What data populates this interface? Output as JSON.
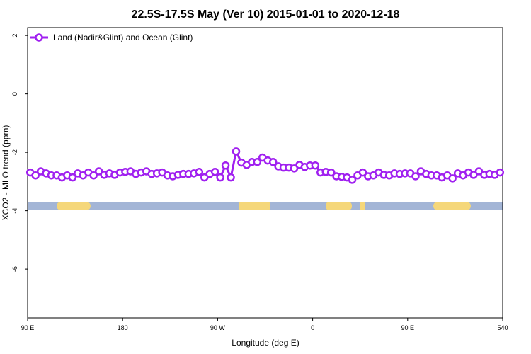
{
  "chart_data": {
    "type": "line",
    "title": "22.5S-17.5S May (Ver 10)   2015-01-01 to 2020-12-18",
    "x_label": "Longitude (deg E)",
    "y_label": "XCO2 - MLO trend (ppm)",
    "xlim": [
      90,
      540
    ],
    "ylim": [
      -7.67,
      2.27
    ],
    "xticks": [
      {
        "value": 90,
        "label": "90 E"
      },
      180,
      {
        "value": 270,
        "label": "90 W"
      },
      {
        "value": 360,
        "label": "0"
      },
      {
        "value": 450,
        "label": "90 E"
      },
      540
    ],
    "yticks": [
      2,
      0,
      -2,
      -4,
      -6
    ],
    "legend": "top-left",
    "x": [
      92.5,
      97.5,
      102.5,
      107.5,
      112.5,
      117.5,
      122.5,
      127.5,
      132.5,
      137.5,
      142.5,
      147.5,
      152.5,
      157.5,
      162.5,
      167.5,
      172.5,
      177.5,
      182.5,
      187.5,
      192.5,
      197.5,
      202.5,
      207.5,
      212.5,
      217.5,
      222.5,
      227.5,
      232.5,
      237.5,
      242.5,
      247.5,
      252.5,
      257.5,
      262.5,
      267.5,
      272.5,
      277.5,
      282.5,
      287.5,
      292.5,
      297.5,
      302.5,
      307.5,
      312.5,
      317.5,
      322.5,
      327.5,
      332.5,
      337.5,
      342.5,
      347.5,
      352.5,
      357.5,
      362.5,
      367.5,
      372.5,
      377.5,
      382.5,
      387.5,
      392.5,
      397.5,
      402.5,
      407.5,
      412.5,
      417.5,
      422.5,
      427.5,
      432.5,
      437.5,
      442.5,
      447.5,
      452.5,
      457.5,
      462.5,
      467.5,
      472.5,
      477.5,
      482.5,
      487.5,
      492.5,
      497.5,
      502.5,
      507.5,
      512.5,
      517.5,
      522.5,
      527.5,
      532.5,
      537.5
    ],
    "series": [
      {
        "name": "Land (Nadir&Glint) and Ocean (Glint)",
        "color": "#a020f0",
        "values": [
          -2.69,
          -2.79,
          -2.65,
          -2.72,
          -2.79,
          -2.79,
          -2.86,
          -2.79,
          -2.86,
          -2.72,
          -2.79,
          -2.69,
          -2.79,
          -2.65,
          -2.77,
          -2.72,
          -2.77,
          -2.69,
          -2.67,
          -2.65,
          -2.74,
          -2.69,
          -2.65,
          -2.74,
          -2.72,
          -2.69,
          -2.79,
          -2.82,
          -2.77,
          -2.74,
          -2.74,
          -2.72,
          -2.67,
          -2.86,
          -2.74,
          -2.67,
          -2.86,
          -2.45,
          -2.86,
          -1.97,
          -2.35,
          -2.43,
          -2.33,
          -2.33,
          -2.18,
          -2.28,
          -2.33,
          -2.48,
          -2.52,
          -2.52,
          -2.55,
          -2.43,
          -2.5,
          -2.45,
          -2.45,
          -2.69,
          -2.67,
          -2.69,
          -2.82,
          -2.84,
          -2.86,
          -2.94,
          -2.79,
          -2.69,
          -2.82,
          -2.79,
          -2.69,
          -2.77,
          -2.79,
          -2.72,
          -2.74,
          -2.72,
          -2.72,
          -2.82,
          -2.65,
          -2.74,
          -2.79,
          -2.79,
          -2.86,
          -2.79,
          -2.89,
          -2.72,
          -2.79,
          -2.69,
          -2.77,
          -2.65,
          -2.77,
          -2.74,
          -2.77,
          -2.69
        ]
      }
    ]
  }
}
